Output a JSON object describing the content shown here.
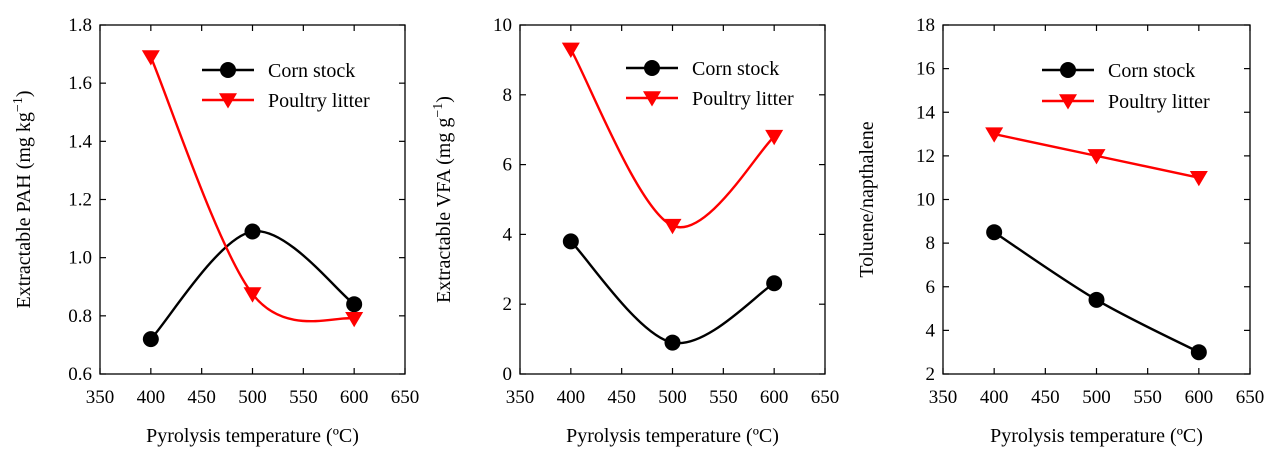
{
  "chart_data": [
    {
      "type": "line",
      "x": [
        400,
        500,
        600
      ],
      "xlabel": "Pyrolysis temperature (ºC)",
      "ylabel_main": "Extractable PAH (mg kg",
      "ylabel_sup": "−1",
      "ylabel_end": ")",
      "xlim": [
        350,
        650
      ],
      "ylim": [
        0.6,
        1.8
      ],
      "xticks": [
        350,
        400,
        450,
        500,
        550,
        600,
        650
      ],
      "xtick_labels": [
        "350",
        "400",
        "450",
        "500",
        "550",
        "600",
        "650"
      ],
      "yticks": [
        0.6,
        0.8,
        1.0,
        1.2,
        1.4,
        1.6,
        1.8
      ],
      "ytick_labels": [
        "0.6",
        "0.8",
        "1.0",
        "1.2",
        "1.4",
        "1.6",
        "1.8"
      ],
      "smooth": true,
      "legend_position": "top-right",
      "series": [
        {
          "name": "Corn stock",
          "values": [
            0.72,
            1.09,
            0.84
          ],
          "color": "#000000",
          "marker": "circle"
        },
        {
          "name": "Poultry litter",
          "values": [
            1.69,
            0.875,
            0.79
          ],
          "color": "#ff0000",
          "marker": "triangle-down"
        }
      ]
    },
    {
      "type": "line",
      "x": [
        400,
        500,
        600
      ],
      "xlabel": "Pyrolysis temperature (ºC)",
      "ylabel_main": "Extractable VFA (mg g",
      "ylabel_sup": "−1",
      "ylabel_end": ")",
      "xlim": [
        350,
        650
      ],
      "ylim": [
        0,
        10
      ],
      "xticks": [
        350,
        400,
        450,
        500,
        550,
        600,
        650
      ],
      "xtick_labels": [
        "350",
        "400",
        "450",
        "500",
        "550",
        "600",
        "650"
      ],
      "yticks": [
        0,
        2,
        4,
        6,
        8,
        10
      ],
      "ytick_labels": [
        "0",
        "2",
        "4",
        "6",
        "8",
        "10"
      ],
      "smooth": true,
      "legend_position": "top-right",
      "series": [
        {
          "name": "Corn stock",
          "values": [
            3.8,
            0.9,
            2.6
          ],
          "color": "#000000",
          "marker": "circle"
        },
        {
          "name": "Poultry litter",
          "values": [
            9.3,
            4.25,
            6.8
          ],
          "color": "#ff0000",
          "marker": "triangle-down"
        }
      ]
    },
    {
      "type": "line",
      "x": [
        400,
        500,
        600
      ],
      "xlabel": "Pyrolysis temperature (ºC)",
      "ylabel_main": "Toluene/napthalene",
      "ylabel_sup": "",
      "ylabel_end": "",
      "xlim": [
        350,
        650
      ],
      "ylim": [
        2,
        18
      ],
      "xticks": [
        350,
        400,
        450,
        500,
        550,
        600,
        650
      ],
      "xtick_labels": [
        "350",
        "400",
        "450",
        "500",
        "550",
        "600",
        "650"
      ],
      "yticks": [
        2,
        4,
        6,
        8,
        10,
        12,
        14,
        16,
        18
      ],
      "ytick_labels": [
        "2",
        "4",
        "6",
        "8",
        "10",
        "12",
        "14",
        "16",
        "18"
      ],
      "smooth": true,
      "legend_position": "top-right",
      "series": [
        {
          "name": "Corn stock",
          "values": [
            8.5,
            5.4,
            3.0
          ],
          "color": "#000000",
          "marker": "circle"
        },
        {
          "name": "Poultry litter",
          "values": [
            13.0,
            12.0,
            11.0
          ],
          "color": "#ff0000",
          "marker": "triangle-down"
        }
      ]
    }
  ]
}
